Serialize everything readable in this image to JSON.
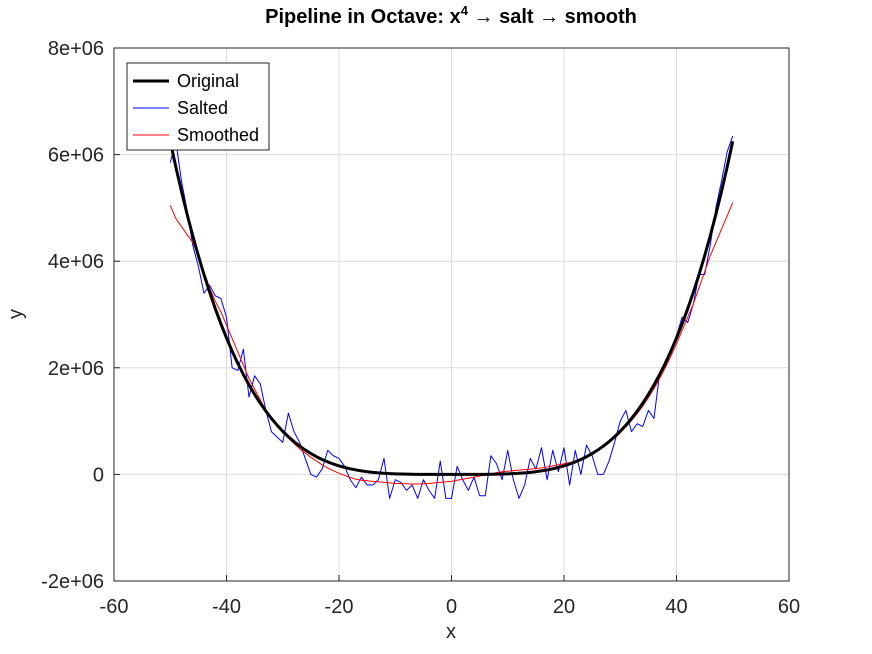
{
  "chart_data": {
    "type": "line",
    "title": "Pipeline in Octave: x",
    "title_sup": "4",
    "title_rest": " → salt → smooth",
    "xlabel": "x",
    "ylabel": "y",
    "xlim": [
      -60,
      60
    ],
    "ylim": [
      -2000000,
      8000000
    ],
    "xticks": [
      -60,
      -40,
      -20,
      0,
      20,
      40,
      60
    ],
    "xtick_labels": [
      "-60",
      "-40",
      "-20",
      "0",
      "20",
      "40",
      "60"
    ],
    "yticks": [
      -2000000,
      0,
      2000000,
      4000000,
      6000000,
      8000000
    ],
    "ytick_labels": [
      "-2e+06",
      "0",
      "2e+06",
      "4e+06",
      "6e+06",
      "8e+06"
    ],
    "grid": true,
    "legend_position": "top-left",
    "x": [
      -50,
      -49,
      -48,
      -47,
      -46,
      -45,
      -44,
      -43,
      -42,
      -41,
      -40,
      -39,
      -38,
      -37,
      -36,
      -35,
      -34,
      -33,
      -32,
      -31,
      -30,
      -29,
      -28,
      -27,
      -26,
      -25,
      -24,
      -23,
      -22,
      -21,
      -20,
      -19,
      -18,
      -17,
      -16,
      -15,
      -14,
      -13,
      -12,
      -11,
      -10,
      -9,
      -8,
      -7,
      -6,
      -5,
      -4,
      -3,
      -2,
      -1,
      0,
      1,
      2,
      3,
      4,
      5,
      6,
      7,
      8,
      9,
      10,
      11,
      12,
      13,
      14,
      15,
      16,
      17,
      18,
      19,
      20,
      21,
      22,
      23,
      24,
      25,
      26,
      27,
      28,
      29,
      30,
      31,
      32,
      33,
      34,
      35,
      36,
      37,
      38,
      39,
      40,
      41,
      42,
      43,
      44,
      45,
      46,
      47,
      48,
      49,
      50
    ],
    "series": [
      {
        "name": "Original",
        "color": "#000000",
        "width": 3,
        "formula": "x^4"
      },
      {
        "name": "Salted",
        "color": "#0000ff",
        "width": 1,
        "values": [
          5850000,
          6250000,
          5500000,
          4950000,
          4300000,
          3900000,
          3400000,
          3550000,
          3350000,
          3300000,
          2950000,
          2000000,
          1950000,
          2350000,
          1450000,
          1850000,
          1700000,
          1200000,
          800000,
          700000,
          600000,
          1150000,
          800000,
          600000,
          300000,
          0,
          -50000,
          100000,
          450000,
          350000,
          300000,
          150000,
          -100000,
          -250000,
          -50000,
          -200000,
          -200000,
          -100000,
          300000,
          -450000,
          -100000,
          -150000,
          -300000,
          -200000,
          -450000,
          -100000,
          -300000,
          -450000,
          250000,
          -450000,
          -450000,
          150000,
          -100000,
          -300000,
          -50000,
          -400000,
          -400000,
          350000,
          200000,
          -100000,
          450000,
          -100000,
          -450000,
          -200000,
          300000,
          100000,
          500000,
          -100000,
          450000,
          50000,
          500000,
          -200000,
          450000,
          0,
          550000,
          350000,
          0,
          0,
          250000,
          600000,
          1000000,
          1200000,
          800000,
          950000,
          900000,
          1200000,
          1050000,
          1900000,
          2000000,
          2300000,
          2600000,
          2950000,
          2850000,
          3200000,
          3750000,
          3750000,
          4300000,
          5000000,
          5500000,
          6050000,
          6350000
        ]
      },
      {
        "name": "Smoothed",
        "color": "#ff0000",
        "width": 1,
        "values": [
          5050000,
          4800000,
          4650000,
          4500000,
          4350000,
          4100000,
          3800000,
          3500000,
          3250000,
          3050000,
          2800000,
          2550000,
          2300000,
          2050000,
          1800000,
          1600000,
          1400000,
          1200000,
          1050000,
          900000,
          780000,
          680000,
          580000,
          480000,
          400000,
          320000,
          250000,
          180000,
          120000,
          70000,
          20000,
          -20000,
          -60000,
          -90000,
          -110000,
          -120000,
          -130000,
          -140000,
          -150000,
          -160000,
          -170000,
          -170000,
          -175000,
          -180000,
          -180000,
          -175000,
          -170000,
          -160000,
          -150000,
          -140000,
          -130000,
          -110000,
          -90000,
          -70000,
          -50000,
          -30000,
          -10000,
          10000,
          30000,
          50000,
          60000,
          70000,
          80000,
          90000,
          100000,
          110000,
          120000,
          140000,
          160000,
          180000,
          200000,
          220000,
          250000,
          290000,
          330000,
          380000,
          440000,
          510000,
          590000,
          680000,
          780000,
          890000,
          1010000,
          1140000,
          1280000,
          1440000,
          1610000,
          1800000,
          2000000,
          2220000,
          2450000,
          2700000,
          2950000,
          3200000,
          3500000,
          3800000,
          4100000,
          4350000,
          4600000,
          4850000,
          5100000
        ]
      }
    ]
  }
}
